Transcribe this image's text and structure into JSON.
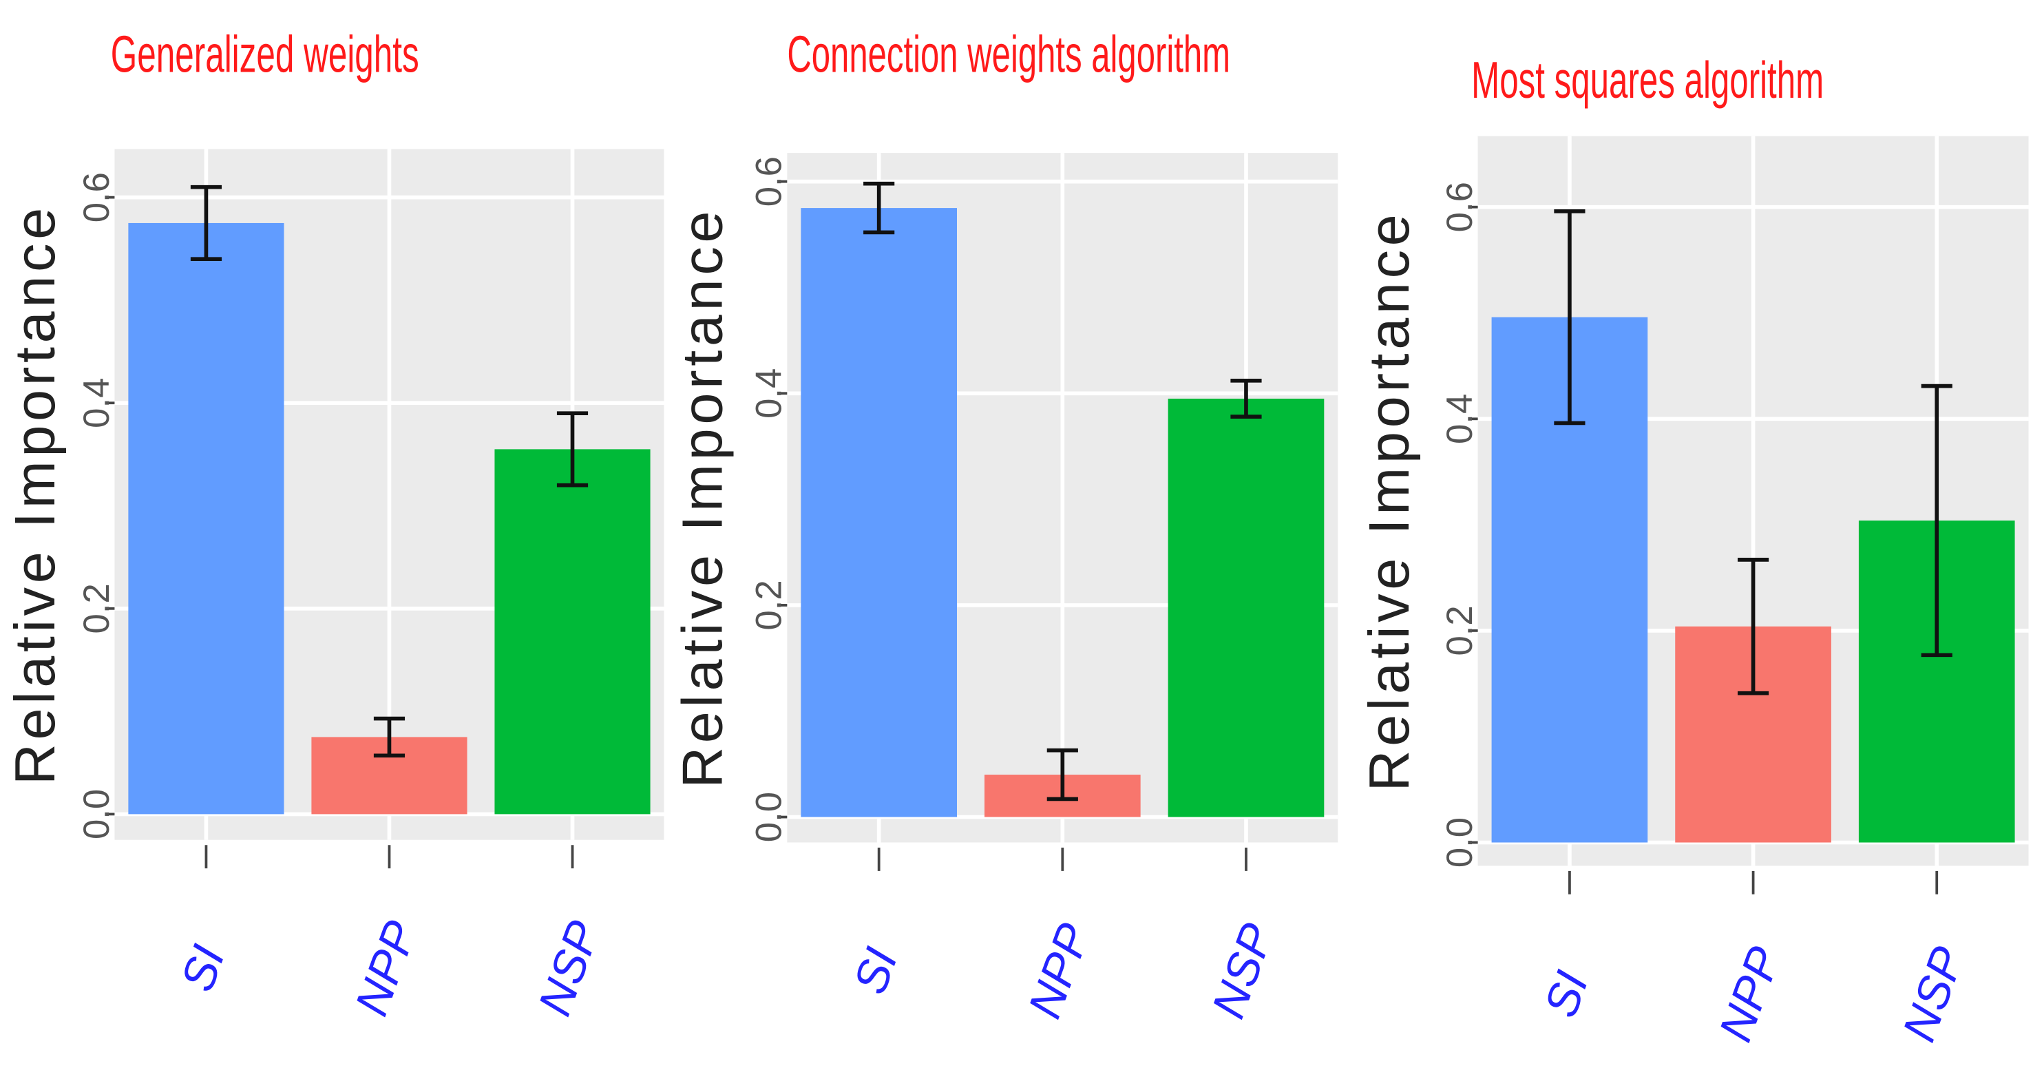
{
  "chart_data": [
    {
      "type": "bar",
      "title": "Generalized weights",
      "y_label": "Relative Importance",
      "categories": [
        "SI",
        "NPP",
        "NSP"
      ],
      "values": [
        0.575,
        0.075,
        0.355
      ],
      "errors": [
        0.035,
        0.018,
        0.035
      ],
      "colors": [
        "#619CFF",
        "#F8766D",
        "#00BA38"
      ],
      "ylim": [
        -0.025,
        0.647
      ],
      "yticks": [
        {
          "value": 0,
          "label": "0.0"
        },
        0.2,
        0.4,
        0.6
      ],
      "grid": true
    },
    {
      "type": "bar",
      "title": "Connection weights algorithm",
      "y_label": "Relative Importance",
      "categories": [
        "SI",
        "NPP",
        "NSP"
      ],
      "values": [
        0.575,
        0.04,
        0.395
      ],
      "errors": [
        0.023,
        0.023,
        0.017
      ],
      "colors": [
        "#619CFF",
        "#F8766D",
        "#00BA38"
      ],
      "ylim": [
        -0.024,
        0.627
      ],
      "yticks": [
        {
          "value": 0,
          "label": "0.0"
        },
        0.2,
        0.4,
        0.6
      ],
      "grid": true
    },
    {
      "type": "bar",
      "title": "Most squares algorithm",
      "y_label": "Relative Importance",
      "categories": [
        "SI",
        "NPP",
        "NSP"
      ],
      "values": [
        0.496,
        0.204,
        0.304
      ],
      "errors": [
        0.1,
        0.063,
        0.127
      ],
      "colors": [
        "#619CFF",
        "#F8766D",
        "#00BA38"
      ],
      "ylim": [
        -0.022,
        0.667
      ],
      "yticks": [
        {
          "value": 0,
          "label": "0.0"
        },
        0.2,
        0.4,
        0.6
      ],
      "grid": true
    }
  ]
}
